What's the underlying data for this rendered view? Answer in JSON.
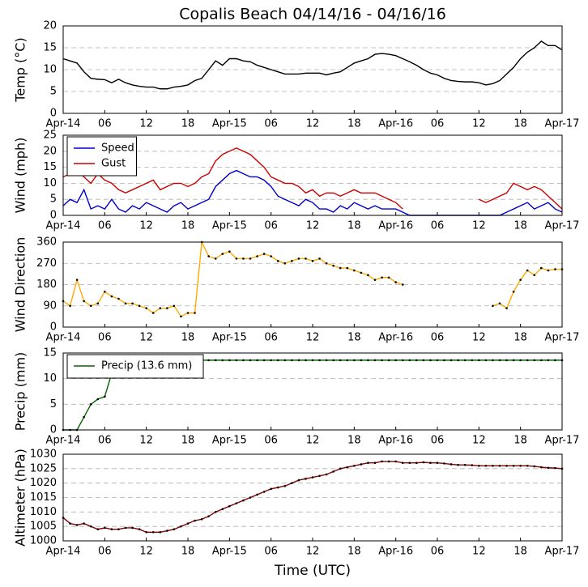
{
  "chart_data": [
    {
      "type": "line",
      "title": "Copalis Beach 04/14/16 - 04/16/16",
      "ylabel": "Temp (°C)",
      "x": [
        0,
        1,
        2,
        3,
        4,
        5,
        6,
        7,
        8,
        9,
        10,
        11,
        12,
        13,
        14,
        15,
        16,
        17,
        18,
        19,
        20,
        21,
        22,
        23,
        24,
        25,
        26,
        27,
        28,
        29,
        30,
        31,
        32,
        33,
        34,
        35,
        36,
        37,
        38,
        39,
        40,
        41,
        42,
        43,
        44,
        45,
        46,
        47,
        48,
        49,
        50,
        51,
        52,
        53,
        54,
        55,
        56,
        57,
        58,
        59,
        60,
        61,
        62,
        63,
        64,
        65,
        66,
        67,
        68,
        69,
        70,
        71,
        72
      ],
      "series": [
        {
          "name": "Temp",
          "color": "#000000",
          "marker": false,
          "values": [
            12.5,
            12,
            11.5,
            9.5,
            8,
            7.8,
            7.7,
            7,
            7.8,
            7,
            6.5,
            6.2,
            6,
            6,
            5.6,
            5.6,
            6,
            6.2,
            6.5,
            7.5,
            8,
            10,
            12,
            11,
            12.5,
            12.5,
            12,
            11.8,
            11,
            10.5,
            10,
            9.5,
            9,
            9,
            9,
            9.2,
            9.2,
            9.2,
            8.8,
            9.2,
            9.5,
            10.5,
            11.5,
            12,
            12.5,
            13.5,
            13.7,
            13.5,
            13.2,
            12.5,
            11.8,
            11,
            10,
            9.2,
            8.8,
            8,
            7.5,
            7.3,
            7.2,
            7.2,
            7,
            6.5,
            6.8,
            7.5,
            9,
            10.5,
            12.5,
            14,
            15,
            16.5,
            15.5,
            15.5,
            14.5
          ]
        }
      ],
      "xlim": [
        0,
        72
      ],
      "ylim": [
        0,
        20
      ],
      "yticks": [
        0,
        5,
        10,
        15,
        20
      ],
      "xticks": [
        {
          "value": 0,
          "label": "Apr-14"
        },
        {
          "value": 6,
          "label": "06"
        },
        {
          "value": 12,
          "label": "12"
        },
        {
          "value": 18,
          "label": "18"
        },
        {
          "value": 24,
          "label": "Apr-15"
        },
        {
          "value": 30,
          "label": "06"
        },
        {
          "value": 36,
          "label": "12"
        },
        {
          "value": 42,
          "label": "18"
        },
        {
          "value": 48,
          "label": "Apr-16"
        },
        {
          "value": 54,
          "label": "06"
        },
        {
          "value": 60,
          "label": "12"
        },
        {
          "value": 66,
          "label": "18"
        },
        {
          "value": 72,
          "label": "Apr-17"
        }
      ],
      "grid": true
    },
    {
      "type": "line",
      "ylabel": "Wind (mph)",
      "legend": "upper left",
      "x": [
        0,
        1,
        2,
        3,
        4,
        5,
        6,
        7,
        8,
        9,
        10,
        11,
        12,
        13,
        14,
        15,
        16,
        17,
        18,
        19,
        20,
        21,
        22,
        23,
        24,
        25,
        26,
        27,
        28,
        29,
        30,
        31,
        32,
        33,
        34,
        35,
        36,
        37,
        38,
        39,
        40,
        41,
        42,
        43,
        44,
        45,
        46,
        47,
        48,
        49,
        50,
        51,
        52,
        53,
        54,
        55,
        56,
        57,
        58,
        59,
        60,
        61,
        62,
        63,
        64,
        65,
        66,
        67,
        68,
        69,
        70,
        71,
        72
      ],
      "series": [
        {
          "name": "Speed",
          "color": "#0000cc",
          "marker": false,
          "values": [
            3,
            5,
            4,
            8,
            2,
            3,
            2,
            5,
            2,
            1,
            3,
            2,
            4,
            3,
            2,
            1,
            3,
            4,
            2,
            3,
            4,
            5,
            9,
            11,
            13,
            14,
            13,
            12,
            12,
            11,
            9,
            6,
            5,
            4,
            3,
            5,
            4,
            2,
            2,
            1,
            3,
            2,
            4,
            3,
            2,
            3,
            2,
            2,
            2,
            1,
            0,
            0,
            0,
            0,
            0,
            0,
            0,
            0,
            0,
            0,
            0,
            0,
            0,
            0,
            1,
            2,
            3,
            4,
            2,
            3,
            4,
            2,
            1
          ]
        },
        {
          "name": "Gust",
          "color": "#cc0000",
          "marker": false,
          "values": [
            12,
            13,
            14,
            12,
            10,
            13,
            11,
            10,
            8,
            7,
            8,
            9,
            10,
            11,
            8,
            9,
            10,
            10,
            9,
            10,
            12,
            13,
            17,
            19,
            20,
            21,
            20,
            19,
            17,
            15,
            12,
            11,
            10,
            10,
            9,
            7,
            8,
            6,
            7,
            7,
            6,
            7,
            8,
            7,
            7,
            7,
            6,
            5,
            4,
            2,
            null,
            null,
            null,
            null,
            null,
            null,
            null,
            null,
            5,
            null,
            5,
            4,
            5,
            6,
            7,
            10,
            9,
            8,
            9,
            8,
            6,
            4,
            2
          ]
        }
      ],
      "xlim": [
        0,
        72
      ],
      "ylim": [
        0,
        25
      ],
      "yticks": [
        0,
        5,
        10,
        15,
        20,
        25
      ],
      "xticks": [
        {
          "value": 0,
          "label": "Apr-14"
        },
        {
          "value": 6,
          "label": "06"
        },
        {
          "value": 12,
          "label": "12"
        },
        {
          "value": 18,
          "label": "18"
        },
        {
          "value": 24,
          "label": "Apr-15"
        },
        {
          "value": 30,
          "label": "06"
        },
        {
          "value": 36,
          "label": "12"
        },
        {
          "value": 42,
          "label": "18"
        },
        {
          "value": 48,
          "label": "Apr-16"
        },
        {
          "value": 54,
          "label": "06"
        },
        {
          "value": 60,
          "label": "12"
        },
        {
          "value": 66,
          "label": "18"
        },
        {
          "value": 72,
          "label": "Apr-17"
        }
      ],
      "grid": true
    },
    {
      "type": "line",
      "ylabel": "Wind Direction",
      "x": [
        0,
        1,
        2,
        3,
        4,
        5,
        6,
        7,
        8,
        9,
        10,
        11,
        12,
        13,
        14,
        15,
        16,
        17,
        18,
        19,
        20,
        21,
        22,
        23,
        24,
        25,
        26,
        27,
        28,
        29,
        30,
        31,
        32,
        33,
        34,
        35,
        36,
        37,
        38,
        39,
        40,
        41,
        42,
        43,
        44,
        45,
        46,
        47,
        48,
        49,
        50,
        51,
        52,
        53,
        54,
        55,
        56,
        57,
        58,
        59,
        60,
        61,
        62,
        63,
        64,
        65,
        66,
        67,
        68,
        69,
        70,
        71,
        72
      ],
      "series": [
        {
          "name": "Direction",
          "color": "#ffaa00",
          "marker": true,
          "values": [
            110,
            90,
            200,
            110,
            90,
            100,
            150,
            130,
            120,
            100,
            100,
            90,
            80,
            60,
            80,
            80,
            90,
            45,
            60,
            60,
            360,
            300,
            290,
            310,
            320,
            290,
            290,
            290,
            300,
            310,
            300,
            280,
            270,
            280,
            290,
            290,
            280,
            290,
            270,
            260,
            250,
            250,
            240,
            230,
            220,
            200,
            210,
            210,
            190,
            180,
            null,
            null,
            null,
            null,
            null,
            null,
            null,
            null,
            null,
            null,
            null,
            null,
            90,
            100,
            80,
            150,
            200,
            240,
            220,
            250,
            240,
            245,
            245
          ]
        }
      ],
      "xlim": [
        0,
        72
      ],
      "ylim": [
        0,
        360
      ],
      "yticks": [
        0,
        90,
        180,
        270,
        360
      ],
      "xticks": [
        {
          "value": 0,
          "label": "Apr-14"
        },
        {
          "value": 6,
          "label": "06"
        },
        {
          "value": 12,
          "label": "12"
        },
        {
          "value": 18,
          "label": "18"
        },
        {
          "value": 24,
          "label": "Apr-15"
        },
        {
          "value": 30,
          "label": "06"
        },
        {
          "value": 36,
          "label": "12"
        },
        {
          "value": 42,
          "label": "18"
        },
        {
          "value": 48,
          "label": "Apr-16"
        },
        {
          "value": 54,
          "label": "06"
        },
        {
          "value": 60,
          "label": "12"
        },
        {
          "value": 66,
          "label": "18"
        },
        {
          "value": 72,
          "label": "Apr-17"
        }
      ],
      "grid": true
    },
    {
      "type": "line",
      "ylabel": "Precip (mm)",
      "legend": "upper left",
      "x": [
        0,
        1,
        2,
        3,
        4,
        5,
        6,
        7,
        8,
        9,
        10,
        11,
        12,
        13,
        14,
        15,
        16,
        17,
        18,
        19,
        20,
        21,
        22,
        23,
        24,
        25,
        26,
        27,
        28,
        29,
        30,
        31,
        32,
        33,
        34,
        35,
        36,
        37,
        38,
        39,
        40,
        41,
        42,
        43,
        44,
        45,
        46,
        47,
        48,
        49,
        50,
        51,
        52,
        53,
        54,
        55,
        56,
        57,
        58,
        59,
        60,
        61,
        62,
        63,
        64,
        65,
        66,
        67,
        68,
        69,
        70,
        71,
        72
      ],
      "series": [
        {
          "name": "Precip (13.6 mm)",
          "color": "#006600",
          "marker": true,
          "values": [
            0,
            0,
            0,
            2.5,
            5,
            6,
            6.5,
            11,
            12.5,
            13.2,
            13.5,
            13.6,
            13.6,
            13.6,
            13.6,
            13.6,
            13.6,
            13.6,
            13.6,
            13.6,
            13.6,
            13.6,
            13.6,
            13.6,
            13.6,
            13.6,
            13.6,
            13.6,
            13.6,
            13.6,
            13.6,
            13.6,
            13.6,
            13.6,
            13.6,
            13.6,
            13.6,
            13.6,
            13.6,
            13.6,
            13.6,
            13.6,
            13.6,
            13.6,
            13.6,
            13.6,
            13.6,
            13.6,
            13.6,
            13.6,
            13.6,
            13.6,
            13.6,
            13.6,
            13.6,
            13.6,
            13.6,
            13.6,
            13.6,
            13.6,
            13.6,
            13.6,
            13.6,
            13.6,
            13.6,
            13.6,
            13.6,
            13.6,
            13.6,
            13.6,
            13.6,
            13.6,
            13.6
          ]
        }
      ],
      "xlim": [
        0,
        72
      ],
      "ylim": [
        0,
        15
      ],
      "yticks": [
        0,
        5,
        10,
        15
      ],
      "xticks": [
        {
          "value": 0,
          "label": "Apr-14"
        },
        {
          "value": 6,
          "label": "06"
        },
        {
          "value": 12,
          "label": "12"
        },
        {
          "value": 18,
          "label": "18"
        },
        {
          "value": 24,
          "label": "Apr-15"
        },
        {
          "value": 30,
          "label": "06"
        },
        {
          "value": 36,
          "label": "12"
        },
        {
          "value": 42,
          "label": "18"
        },
        {
          "value": 48,
          "label": "Apr-16"
        },
        {
          "value": 54,
          "label": "06"
        },
        {
          "value": 60,
          "label": "12"
        },
        {
          "value": 66,
          "label": "18"
        },
        {
          "value": 72,
          "label": "Apr-17"
        }
      ],
      "grid": true
    },
    {
      "type": "line",
      "ylabel": "Altimeter (hPa)",
      "xlabel": "Time (UTC)",
      "x": [
        0,
        1,
        2,
        3,
        4,
        5,
        6,
        7,
        8,
        9,
        10,
        11,
        12,
        13,
        14,
        15,
        16,
        17,
        18,
        19,
        20,
        21,
        22,
        23,
        24,
        25,
        26,
        27,
        28,
        29,
        30,
        31,
        32,
        33,
        34,
        35,
        36,
        37,
        38,
        39,
        40,
        41,
        42,
        43,
        44,
        45,
        46,
        47,
        48,
        49,
        50,
        51,
        52,
        53,
        54,
        55,
        56,
        57,
        58,
        59,
        60,
        61,
        62,
        63,
        64,
        65,
        66,
        67,
        68,
        69,
        70,
        71,
        72
      ],
      "series": [
        {
          "name": "Altimeter",
          "color": "#880000",
          "marker": true,
          "values": [
            1008,
            1006,
            1005.5,
            1006,
            1005,
            1004,
            1004.5,
            1004,
            1004,
            1004.5,
            1004.5,
            1004,
            1003,
            1003,
            1003,
            1003.5,
            1004,
            1005,
            1006,
            1007,
            1007.5,
            1008.5,
            1010,
            1011,
            1012,
            1013,
            1014,
            1015,
            1016,
            1017,
            1018,
            1018.5,
            1019,
            1020,
            1021,
            1021.5,
            1022,
            1022.5,
            1023,
            1024,
            1025,
            1025.5,
            1026,
            1026.5,
            1027,
            1027,
            1027.5,
            1027.5,
            1027.5,
            1027,
            1027,
            1027,
            1027.2,
            1027,
            1027,
            1026.8,
            1026.5,
            1026.3,
            1026.3,
            1026.2,
            1026,
            1026,
            1026,
            1026,
            1026,
            1026,
            1026,
            1026,
            1025.8,
            1025.5,
            1025.3,
            1025.2,
            1025
          ]
        }
      ],
      "xlim": [
        0,
        72
      ],
      "ylim": [
        1000,
        1030
      ],
      "yticks": [
        1000,
        1005,
        1010,
        1015,
        1020,
        1025,
        1030
      ],
      "xticks": [
        {
          "value": 0,
          "label": "Apr-14"
        },
        {
          "value": 6,
          "label": "06"
        },
        {
          "value": 12,
          "label": "12"
        },
        {
          "value": 18,
          "label": "18"
        },
        {
          "value": 24,
          "label": "Apr-15"
        },
        {
          "value": 30,
          "label": "06"
        },
        {
          "value": 36,
          "label": "12"
        },
        {
          "value": 42,
          "label": "18"
        },
        {
          "value": 48,
          "label": "Apr-16"
        },
        {
          "value": 54,
          "label": "06"
        },
        {
          "value": 60,
          "label": "12"
        },
        {
          "value": 66,
          "label": "18"
        },
        {
          "value": 72,
          "label": "Apr-17"
        }
      ],
      "grid": true
    }
  ]
}
